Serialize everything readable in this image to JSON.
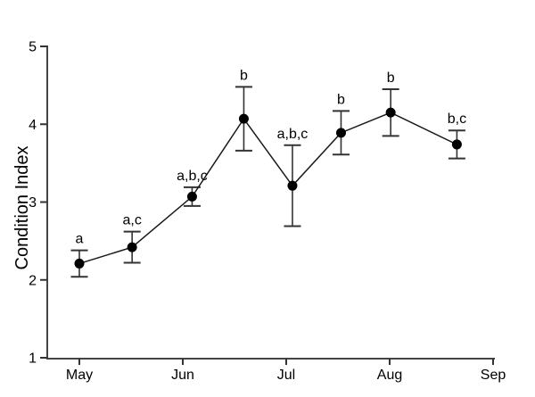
{
  "window": {
    "background": "#ffffff"
  },
  "chart_data": {
    "type": "line",
    "title": "",
    "xlabel": "",
    "ylabel": "Condition Index",
    "grid": false,
    "legend": false,
    "line_color": "#1a1a1a",
    "axis_color": "#444444",
    "error_bar_color": "#333333",
    "marker": {
      "shape": "circle",
      "color": "#000000"
    },
    "x_axis": {
      "unit": "month",
      "range_months": [
        -0.31,
        4.02
      ],
      "ticks": [
        {
          "month": 0,
          "label": "May"
        },
        {
          "month": 1,
          "label": "Jun"
        },
        {
          "month": 2,
          "label": "Jul"
        },
        {
          "month": 3,
          "label": "Aug"
        },
        {
          "month": 4,
          "label": "Sep"
        }
      ]
    },
    "y_axis": {
      "range": [
        1,
        5
      ],
      "ticks": [
        {
          "value": 1,
          "label": "1"
        },
        {
          "value": 2,
          "label": "2"
        },
        {
          "value": 3,
          "label": "3"
        },
        {
          "value": 4,
          "label": "4"
        },
        {
          "value": 5,
          "label": "5"
        }
      ]
    },
    "points": [
      {
        "x_month": 0.0,
        "y": 2.21,
        "error": 0.17,
        "significance": "a"
      },
      {
        "x_month": 0.51,
        "y": 2.42,
        "error": 0.2,
        "significance": "a,c"
      },
      {
        "x_month": 1.09,
        "y": 3.07,
        "error": 0.12,
        "significance": "a,b,c"
      },
      {
        "x_month": 1.59,
        "y": 4.07,
        "error": 0.41,
        "significance": "b"
      },
      {
        "x_month": 2.06,
        "y": 3.21,
        "error": 0.52,
        "significance": "a,b,c"
      },
      {
        "x_month": 2.53,
        "y": 3.89,
        "error": 0.28,
        "significance": "b"
      },
      {
        "x_month": 3.01,
        "y": 4.15,
        "error": 0.3,
        "significance": "b"
      },
      {
        "x_month": 3.65,
        "y": 3.74,
        "error": 0.18,
        "significance": "b,c"
      }
    ]
  }
}
